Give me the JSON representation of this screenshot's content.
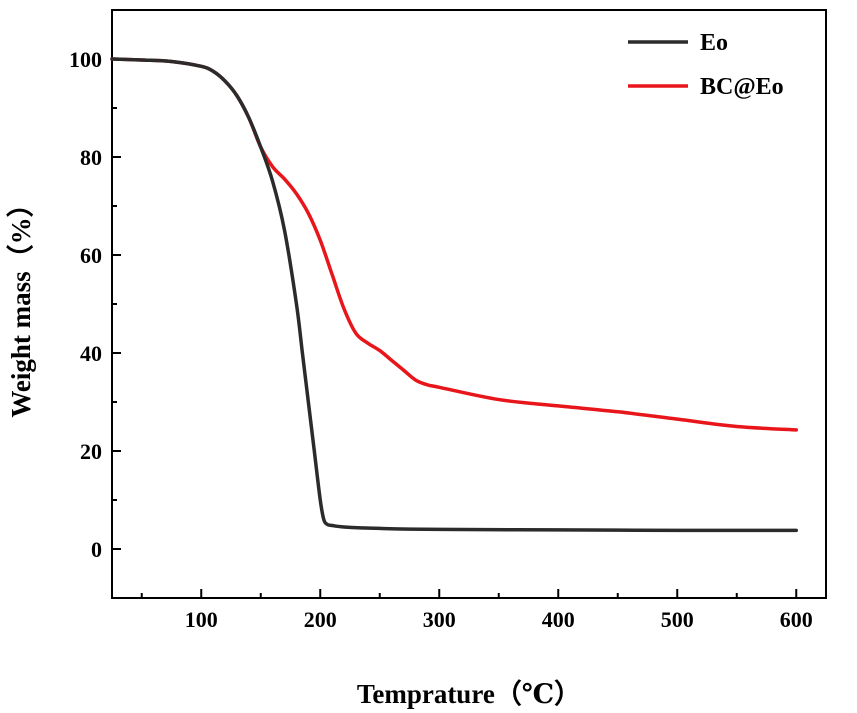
{
  "chart_data": {
    "type": "line",
    "title": "",
    "xlabel": "Temprature（℃）",
    "ylabel": "Weight mass（%）",
    "xlim": [
      25,
      625
    ],
    "ylim": [
      -10,
      110
    ],
    "xticks": [
      100,
      200,
      300,
      400,
      500,
      600
    ],
    "yticks": [
      0,
      20,
      40,
      60,
      80,
      100
    ],
    "grid": false,
    "legend_position": "top-right",
    "series": [
      {
        "name": "Eo",
        "color": "#2b2b2b",
        "x": [
          25,
          50,
          75,
          100,
          110,
          120,
          130,
          140,
          150,
          160,
          170,
          180,
          185,
          190,
          195,
          200,
          203,
          206,
          210,
          220,
          250,
          300,
          400,
          500,
          600
        ],
        "y": [
          100,
          99.8,
          99.5,
          98.5,
          97.5,
          95.5,
          92.5,
          88,
          82,
          75,
          65,
          50,
          40,
          30,
          20,
          10,
          6,
          5,
          4.8,
          4.5,
          4.2,
          4,
          3.9,
          3.8,
          3.8
        ]
      },
      {
        "name": "BC@Eo",
        "color": "#e8161b",
        "x": [
          25,
          50,
          75,
          100,
          110,
          120,
          130,
          140,
          150,
          160,
          170,
          180,
          190,
          200,
          210,
          220,
          230,
          240,
          250,
          260,
          270,
          280,
          290,
          300,
          350,
          400,
          450,
          500,
          550,
          600
        ],
        "y": [
          100,
          99.8,
          99.5,
          98.5,
          97.5,
          95.5,
          92.5,
          88,
          82,
          78,
          75.5,
          72.5,
          68.5,
          63,
          56,
          49,
          44,
          42,
          40.5,
          38.5,
          36.5,
          34.5,
          33.5,
          33,
          30.5,
          29.2,
          28,
          26.5,
          25,
          24.3
        ]
      }
    ]
  }
}
